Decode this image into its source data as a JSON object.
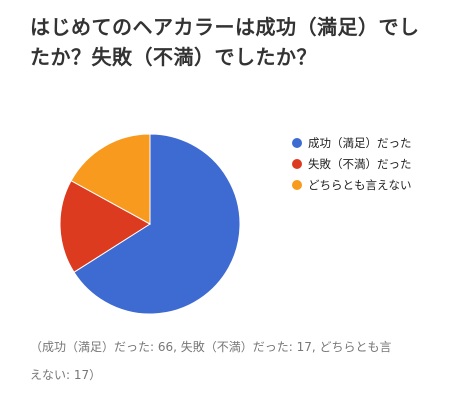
{
  "chart_data": {
    "type": "pie",
    "title_lines": [
      "はじめてのヘアカラーは成功（満足）でし",
      "たか？失敗（不満）でしたか？"
    ],
    "slices": [
      {
        "label": "成功（満足）だった",
        "value": 66,
        "color": "#3d6bd1"
      },
      {
        "label": "失敗（不満）だった",
        "value": 17,
        "color": "#dc3b20"
      },
      {
        "label": "どちらとも言えない",
        "value": 17,
        "color": "#f89a1d"
      }
    ],
    "legend_position": "right",
    "footnote_lines": [
      "（成功（満足）だった: 66, 失敗（不満）だった: 17, どちらとも言",
      "えない: 17）"
    ]
  }
}
